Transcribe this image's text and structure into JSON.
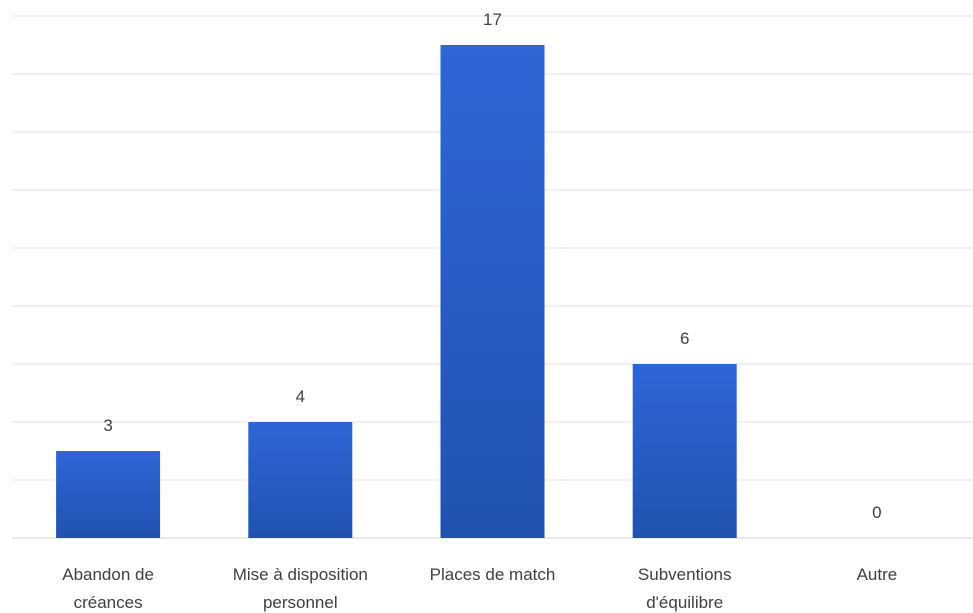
{
  "chart_data": {
    "type": "bar",
    "categories": [
      [
        "Abandon de",
        "créances"
      ],
      [
        "Mise à disposition",
        "personnel"
      ],
      [
        "Places de match"
      ],
      [
        "Subventions",
        "d'équilibre"
      ],
      [
        "Autre"
      ]
    ],
    "values": [
      3,
      4,
      17,
      6,
      0
    ],
    "data_labels": [
      "3",
      "4",
      "17",
      "6",
      "0"
    ],
    "ylim": [
      0,
      18
    ],
    "grid": true,
    "gridline_step": 2,
    "bar_color": "#2f66d6",
    "bar_color_dark": "#2152b0"
  }
}
